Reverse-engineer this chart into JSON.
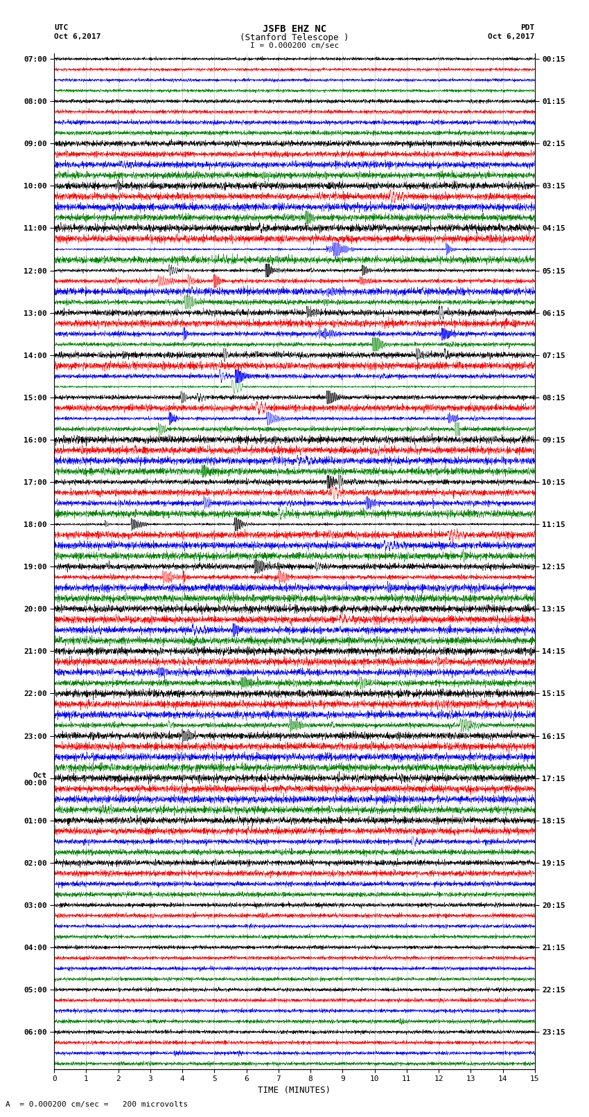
{
  "title_line1": "JSFB EHZ NC",
  "title_line2": "(Stanford Telescope )",
  "scale_label": "I = 0.000200 cm/sec",
  "xlabel": "TIME (MINUTES)",
  "bottom_note": "= 0.000200 cm/sec =   200 microvolts",
  "utc_times_labeled": [
    "07:00",
    "08:00",
    "09:00",
    "10:00",
    "11:00",
    "12:00",
    "13:00",
    "14:00",
    "15:00",
    "16:00",
    "17:00",
    "18:00",
    "19:00",
    "20:00",
    "21:00",
    "22:00",
    "23:00",
    "Oct\n00:00",
    "01:00",
    "02:00",
    "03:00",
    "04:00",
    "05:00",
    "06:00"
  ],
  "pdt_times_labeled": [
    "00:15",
    "01:15",
    "02:15",
    "03:15",
    "04:15",
    "05:15",
    "06:15",
    "07:15",
    "08:15",
    "09:15",
    "10:15",
    "11:15",
    "12:15",
    "13:15",
    "14:15",
    "15:15",
    "16:15",
    "17:15",
    "18:15",
    "19:15",
    "20:15",
    "21:15",
    "22:15",
    "23:15"
  ],
  "colors": [
    "black",
    "red",
    "blue",
    "green"
  ],
  "num_rows": 96,
  "traces_per_hour": 4,
  "minutes": 15,
  "bg_color": "white",
  "xmin": 0,
  "xmax": 15,
  "amplitude_profile": [
    0.08,
    0.08,
    0.08,
    0.08,
    0.1,
    0.1,
    0.12,
    0.12,
    0.15,
    0.15,
    0.18,
    0.18,
    0.25,
    0.25,
    0.35,
    0.35,
    0.45,
    0.45,
    0.5,
    0.5,
    0.55,
    0.55,
    0.6,
    0.6,
    0.65,
    0.65,
    0.7,
    0.7,
    0.7,
    0.7,
    0.68,
    0.68,
    0.65,
    0.65,
    0.6,
    0.6,
    0.55,
    0.55,
    0.55,
    0.55,
    0.6,
    0.6,
    0.65,
    0.65,
    0.65,
    0.65,
    0.5,
    0.5,
    0.45,
    0.45,
    0.4,
    0.4,
    0.4,
    0.4,
    0.42,
    0.42,
    0.4,
    0.4,
    0.38,
    0.38,
    0.35,
    0.35,
    0.3,
    0.3,
    0.28,
    0.28,
    0.25,
    0.25,
    0.22,
    0.22,
    0.2,
    0.2,
    0.18,
    0.18,
    0.15,
    0.15,
    0.15,
    0.15,
    0.13,
    0.13,
    0.12,
    0.12,
    0.1,
    0.1,
    0.1,
    0.1,
    0.1,
    0.1,
    0.1,
    0.1,
    0.1,
    0.1,
    0.1,
    0.1,
    0.1,
    0.1
  ]
}
